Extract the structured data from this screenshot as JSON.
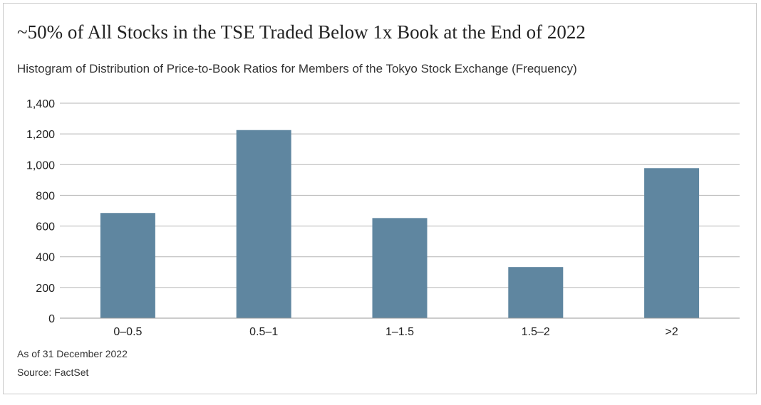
{
  "title": "~50% of All Stocks in the TSE Traded Below 1x Book at the End of 2022",
  "subtitle": "Histogram of Distribution of Price-to-Book Ratios for Members of the Tokyo Stock Exchange (Frequency)",
  "footnotes": {
    "as_of": "As of 31 December 2022",
    "source": "Source: FactSet"
  },
  "colors": {
    "bar": "#5f86a0",
    "grid": "#b5b5b5",
    "axis": "#9a9a9a"
  },
  "chart_data": {
    "type": "bar",
    "title": "~50% of All Stocks in the TSE Traded Below 1x Book at the End of 2022",
    "subtitle": "Histogram of Distribution of Price-to-Book Ratios for Members of the Tokyo Stock Exchange (Frequency)",
    "categories": [
      "0–0.5",
      "0.5–1",
      "1–1.5",
      "1.5–2",
      ">2"
    ],
    "values": [
      685,
      1225,
      652,
      333,
      977
    ],
    "xlabel": "",
    "ylabel": "",
    "ylim": [
      0,
      1400
    ],
    "yticks": [
      0,
      200,
      400,
      600,
      800,
      1000,
      1200,
      1400
    ],
    "ytick_labels": [
      "0",
      "200",
      "400",
      "600",
      "800",
      "1,000",
      "1,200",
      "1,400"
    ],
    "grid": true,
    "legend": "none"
  }
}
